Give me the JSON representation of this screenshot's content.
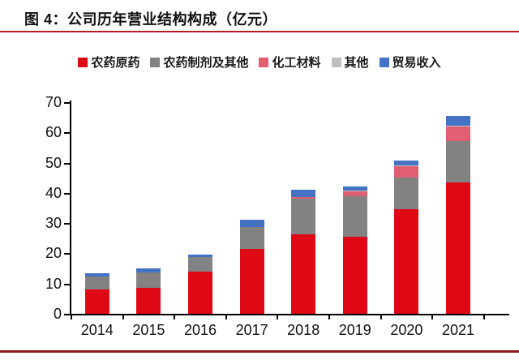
{
  "page": {
    "title": "图 4：公司历年营业结构构成（亿元）"
  },
  "colors": {
    "title_underline": "#b01e1e",
    "bottom_rule": "#8c1818",
    "axis": "#000000"
  },
  "chart_data": {
    "type": "bar",
    "stacked": true,
    "title": "公司历年营业结构构成（亿元）",
    "unit": "亿元",
    "categories": [
      "2014",
      "2015",
      "2016",
      "2017",
      "2018",
      "2019",
      "2020",
      "2021"
    ],
    "series": [
      {
        "name": "农药原药",
        "color": "#df0915",
        "values": [
          8.0,
          8.7,
          14.0,
          21.4,
          26.2,
          25.6,
          34.5,
          43.5
        ]
      },
      {
        "name": "农药制剂及其他",
        "color": "#828282",
        "values": [
          4.3,
          5.0,
          4.8,
          7.4,
          11.9,
          13.2,
          10.6,
          13.6
        ]
      },
      {
        "name": "化工材料",
        "color": "#e15f73",
        "values": [
          0,
          0,
          0,
          0,
          0.5,
          1.7,
          3.7,
          4.9
        ]
      },
      {
        "name": "其他",
        "color": "#bfbfbf",
        "values": [
          0,
          0,
          0,
          0,
          0,
          0.2,
          0.2,
          0.3
        ]
      },
      {
        "name": "贸易收入",
        "color": "#4472c4",
        "values": [
          1.2,
          1.2,
          0.9,
          2.2,
          2.4,
          1.5,
          1.6,
          3.2
        ]
      }
    ],
    "totals": [
      13.5,
      14.9,
      19.7,
      31.0,
      41.0,
      42.2,
      50.6,
      65.5
    ],
    "xlabel": "",
    "ylabel": "",
    "ylim": [
      0,
      70
    ],
    "yticks": [
      0,
      10,
      20,
      30,
      40,
      50,
      60,
      70
    ],
    "grid": false,
    "legend_position": "top"
  }
}
